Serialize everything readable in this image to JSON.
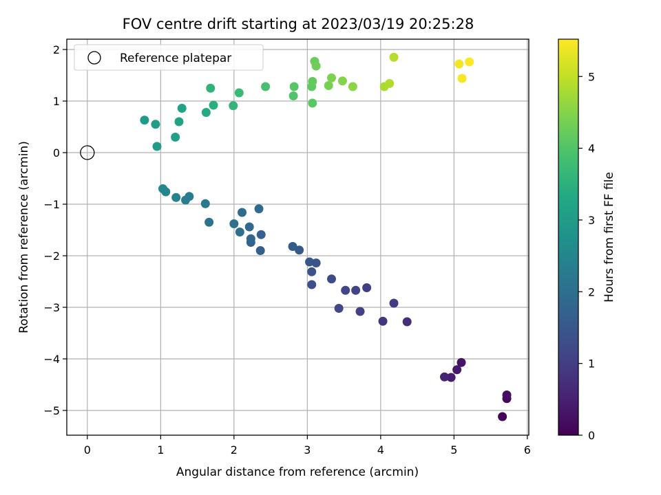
{
  "chart_data": {
    "type": "scatter",
    "title": "FOV centre drift starting at 2023/03/19 20:25:28",
    "xlabel": "Angular distance from reference (arcmin)",
    "ylabel": "Rotation from reference (arcmin)",
    "xlim": [
      -0.28,
      6.02
    ],
    "ylim": [
      -5.48,
      2.2
    ],
    "x_ticks": [
      "0",
      "1",
      "2",
      "3",
      "4",
      "5",
      "6"
    ],
    "y_ticks": [
      "2",
      "1",
      "0",
      "−1",
      "−2",
      "−3",
      "−4",
      "−5"
    ],
    "grid": true,
    "legend": {
      "position": "top-left",
      "label": "Reference platepar"
    },
    "reference_point": {
      "x": 0,
      "y": 0
    },
    "colorbar": {
      "label": "Hours from first FF file",
      "range": [
        0,
        5.52
      ],
      "ticks": [
        "0",
        "1",
        "2",
        "3",
        "4",
        "5"
      ],
      "colormap": "viridis"
    },
    "points": [
      {
        "x": 5.66,
        "y": -5.12,
        "t": 0.05
      },
      {
        "x": 5.72,
        "y": -4.77,
        "t": 0.12
      },
      {
        "x": 5.72,
        "y": -4.7,
        "t": 0.2
      },
      {
        "x": 5.1,
        "y": -4.07,
        "t": 0.3
      },
      {
        "x": 5.04,
        "y": -4.21,
        "t": 0.38
      },
      {
        "x": 4.96,
        "y": -4.36,
        "t": 0.45
      },
      {
        "x": 4.87,
        "y": -4.35,
        "t": 0.52
      },
      {
        "x": 4.36,
        "y": -3.28,
        "t": 0.75
      },
      {
        "x": 4.03,
        "y": -3.27,
        "t": 0.85
      },
      {
        "x": 4.18,
        "y": -2.92,
        "t": 0.95
      },
      {
        "x": 3.81,
        "y": -2.62,
        "t": 1.0
      },
      {
        "x": 3.72,
        "y": -3.08,
        "t": 1.05
      },
      {
        "x": 3.66,
        "y": -2.67,
        "t": 1.1
      },
      {
        "x": 3.52,
        "y": -2.67,
        "t": 1.15
      },
      {
        "x": 3.43,
        "y": -3.02,
        "t": 1.2
      },
      {
        "x": 3.33,
        "y": -2.45,
        "t": 1.25
      },
      {
        "x": 3.06,
        "y": -2.56,
        "t": 1.32
      },
      {
        "x": 3.06,
        "y": -2.31,
        "t": 1.38
      },
      {
        "x": 3.12,
        "y": -2.14,
        "t": 1.43
      },
      {
        "x": 3.03,
        "y": -2.12,
        "t": 1.48
      },
      {
        "x": 2.89,
        "y": -1.89,
        "t": 1.55
      },
      {
        "x": 2.8,
        "y": -1.82,
        "t": 1.6
      },
      {
        "x": 2.36,
        "y": -1.9,
        "t": 1.65
      },
      {
        "x": 2.37,
        "y": -1.59,
        "t": 1.7
      },
      {
        "x": 2.23,
        "y": -1.74,
        "t": 1.75
      },
      {
        "x": 2.23,
        "y": -1.67,
        "t": 1.8
      },
      {
        "x": 2.21,
        "y": -1.44,
        "t": 1.85
      },
      {
        "x": 2.34,
        "y": -1.09,
        "t": 1.9
      },
      {
        "x": 2.11,
        "y": -1.16,
        "t": 1.95
      },
      {
        "x": 2.08,
        "y": -1.54,
        "t": 2.0
      },
      {
        "x": 2.0,
        "y": -1.38,
        "t": 2.05
      },
      {
        "x": 1.66,
        "y": -1.35,
        "t": 2.1
      },
      {
        "x": 1.61,
        "y": -0.99,
        "t": 2.2
      },
      {
        "x": 1.39,
        "y": -0.85,
        "t": 2.3
      },
      {
        "x": 1.34,
        "y": -0.92,
        "t": 2.35
      },
      {
        "x": 1.21,
        "y": -0.87,
        "t": 2.45
      },
      {
        "x": 1.07,
        "y": -0.76,
        "t": 2.5
      },
      {
        "x": 1.03,
        "y": -0.7,
        "t": 2.55
      },
      {
        "x": 0.95,
        "y": 0.12,
        "t": 3.0
      },
      {
        "x": 0.78,
        "y": 0.63,
        "t": 3.0
      },
      {
        "x": 0.93,
        "y": 0.55,
        "t": 3.05
      },
      {
        "x": 1.2,
        "y": 0.3,
        "t": 3.1
      },
      {
        "x": 1.25,
        "y": 0.6,
        "t": 3.15
      },
      {
        "x": 1.29,
        "y": 0.86,
        "t": 3.2
      },
      {
        "x": 1.62,
        "y": 0.78,
        "t": 3.35
      },
      {
        "x": 1.72,
        "y": 0.92,
        "t": 3.45
      },
      {
        "x": 1.68,
        "y": 1.25,
        "t": 3.55
      },
      {
        "x": 1.99,
        "y": 0.91,
        "t": 3.6
      },
      {
        "x": 2.07,
        "y": 1.16,
        "t": 3.7
      },
      {
        "x": 2.43,
        "y": 1.28,
        "t": 3.9
      },
      {
        "x": 2.81,
        "y": 1.1,
        "t": 4.0
      },
      {
        "x": 2.82,
        "y": 1.28,
        "t": 4.05
      },
      {
        "x": 3.07,
        "y": 0.96,
        "t": 4.1
      },
      {
        "x": 3.06,
        "y": 1.28,
        "t": 4.15
      },
      {
        "x": 3.07,
        "y": 1.38,
        "t": 4.2
      },
      {
        "x": 3.1,
        "y": 1.77,
        "t": 4.25
      },
      {
        "x": 3.12,
        "y": 1.68,
        "t": 4.3
      },
      {
        "x": 3.29,
        "y": 1.3,
        "t": 4.4
      },
      {
        "x": 3.33,
        "y": 1.45,
        "t": 4.45
      },
      {
        "x": 3.48,
        "y": 1.39,
        "t": 4.5
      },
      {
        "x": 3.62,
        "y": 1.28,
        "t": 4.55
      },
      {
        "x": 4.05,
        "y": 1.28,
        "t": 4.8
      },
      {
        "x": 4.12,
        "y": 1.34,
        "t": 4.85
      },
      {
        "x": 4.18,
        "y": 1.85,
        "t": 4.9
      },
      {
        "x": 5.07,
        "y": 1.72,
        "t": 5.45
      },
      {
        "x": 5.11,
        "y": 1.44,
        "t": 5.48
      },
      {
        "x": 5.21,
        "y": 1.76,
        "t": 5.52
      }
    ]
  }
}
